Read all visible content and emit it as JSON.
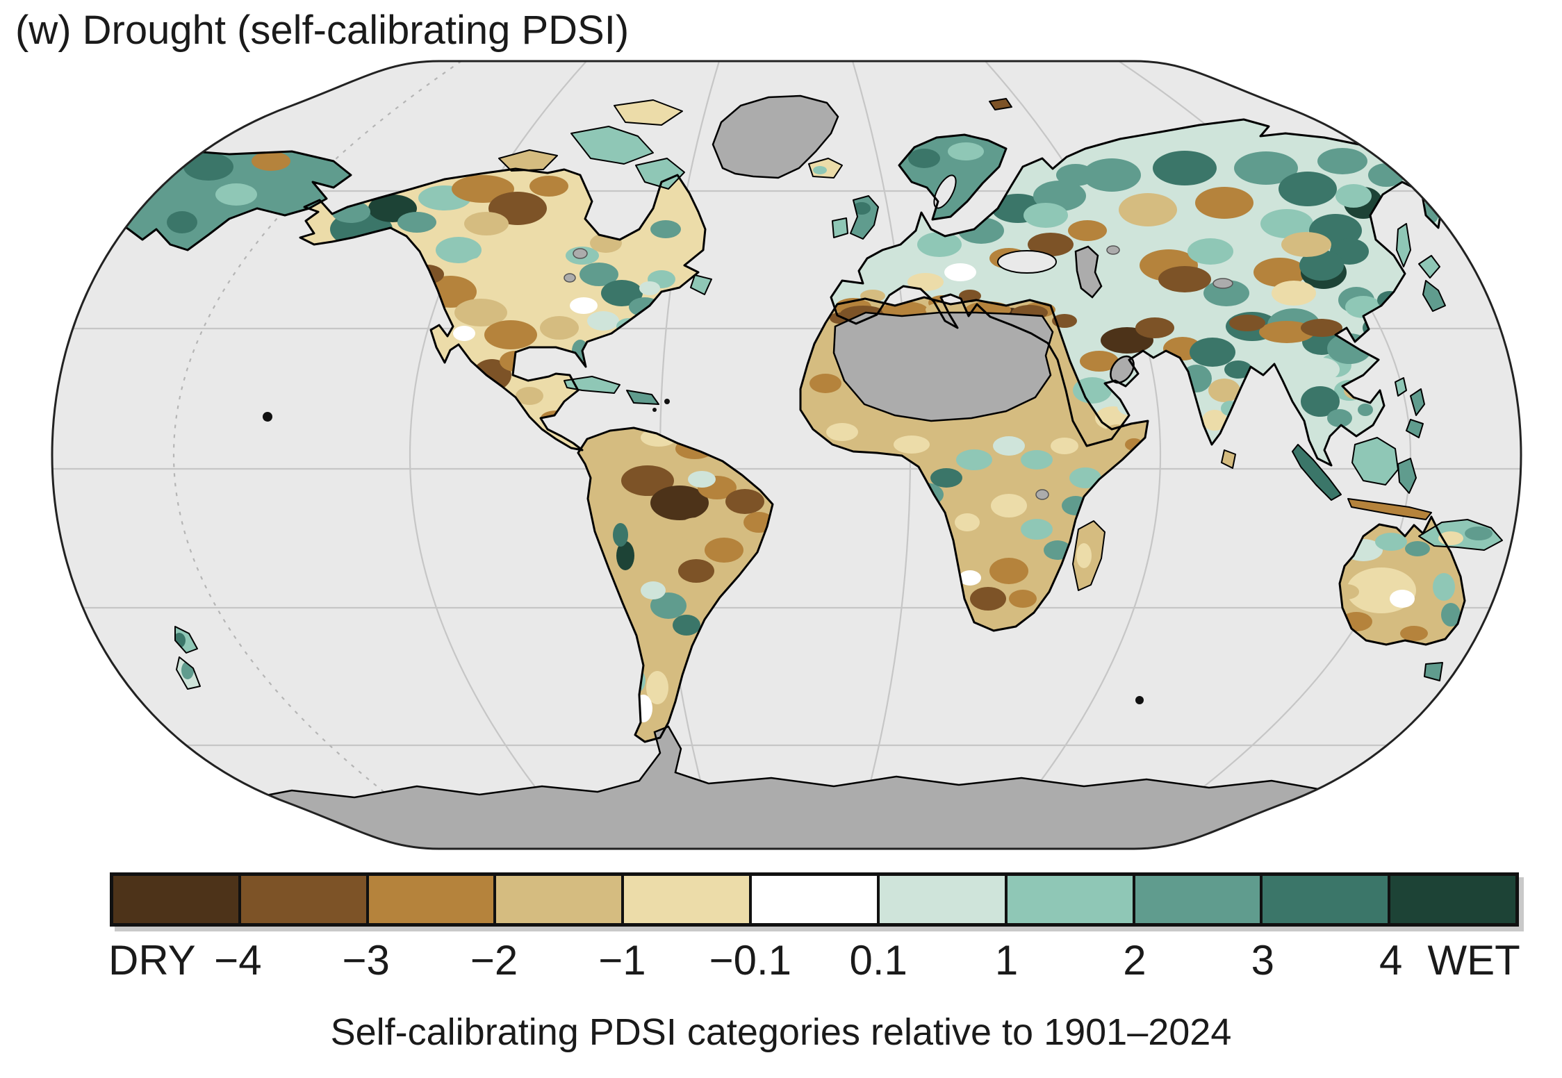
{
  "figure": {
    "title": "(w) Drought (self-calibrating PDSI)",
    "caption": "Self-calibrating PDSI categories relative to 1901–2024"
  },
  "colorbar": {
    "dry_label": "DRY",
    "wet_label": "WET",
    "boundary_labels": [
      "−4",
      "−3",
      "−2",
      "−1",
      "−0.1",
      "0.1",
      "1",
      "2",
      "3",
      "4"
    ],
    "segments": [
      "#4d3319",
      "#7d5327",
      "#b5833c",
      "#d5bc80",
      "#ecdca9",
      "#ffffff",
      "#cfe4da",
      "#8fc7b6",
      "#609c8e",
      "#3b7669",
      "#1d4336"
    ]
  },
  "map": {
    "projection": "Robinson",
    "ocean_color": "#e9e9e9",
    "no_data_color": "#acacac",
    "coastline_color": "#000000",
    "graticule_color": "#c6c6c6",
    "outline_color": "#222222",
    "no_data_regions": [
      "Greenland",
      "Sahara",
      "Caspian Sea",
      "Persian Gulf",
      "Antarctica"
    ]
  }
}
